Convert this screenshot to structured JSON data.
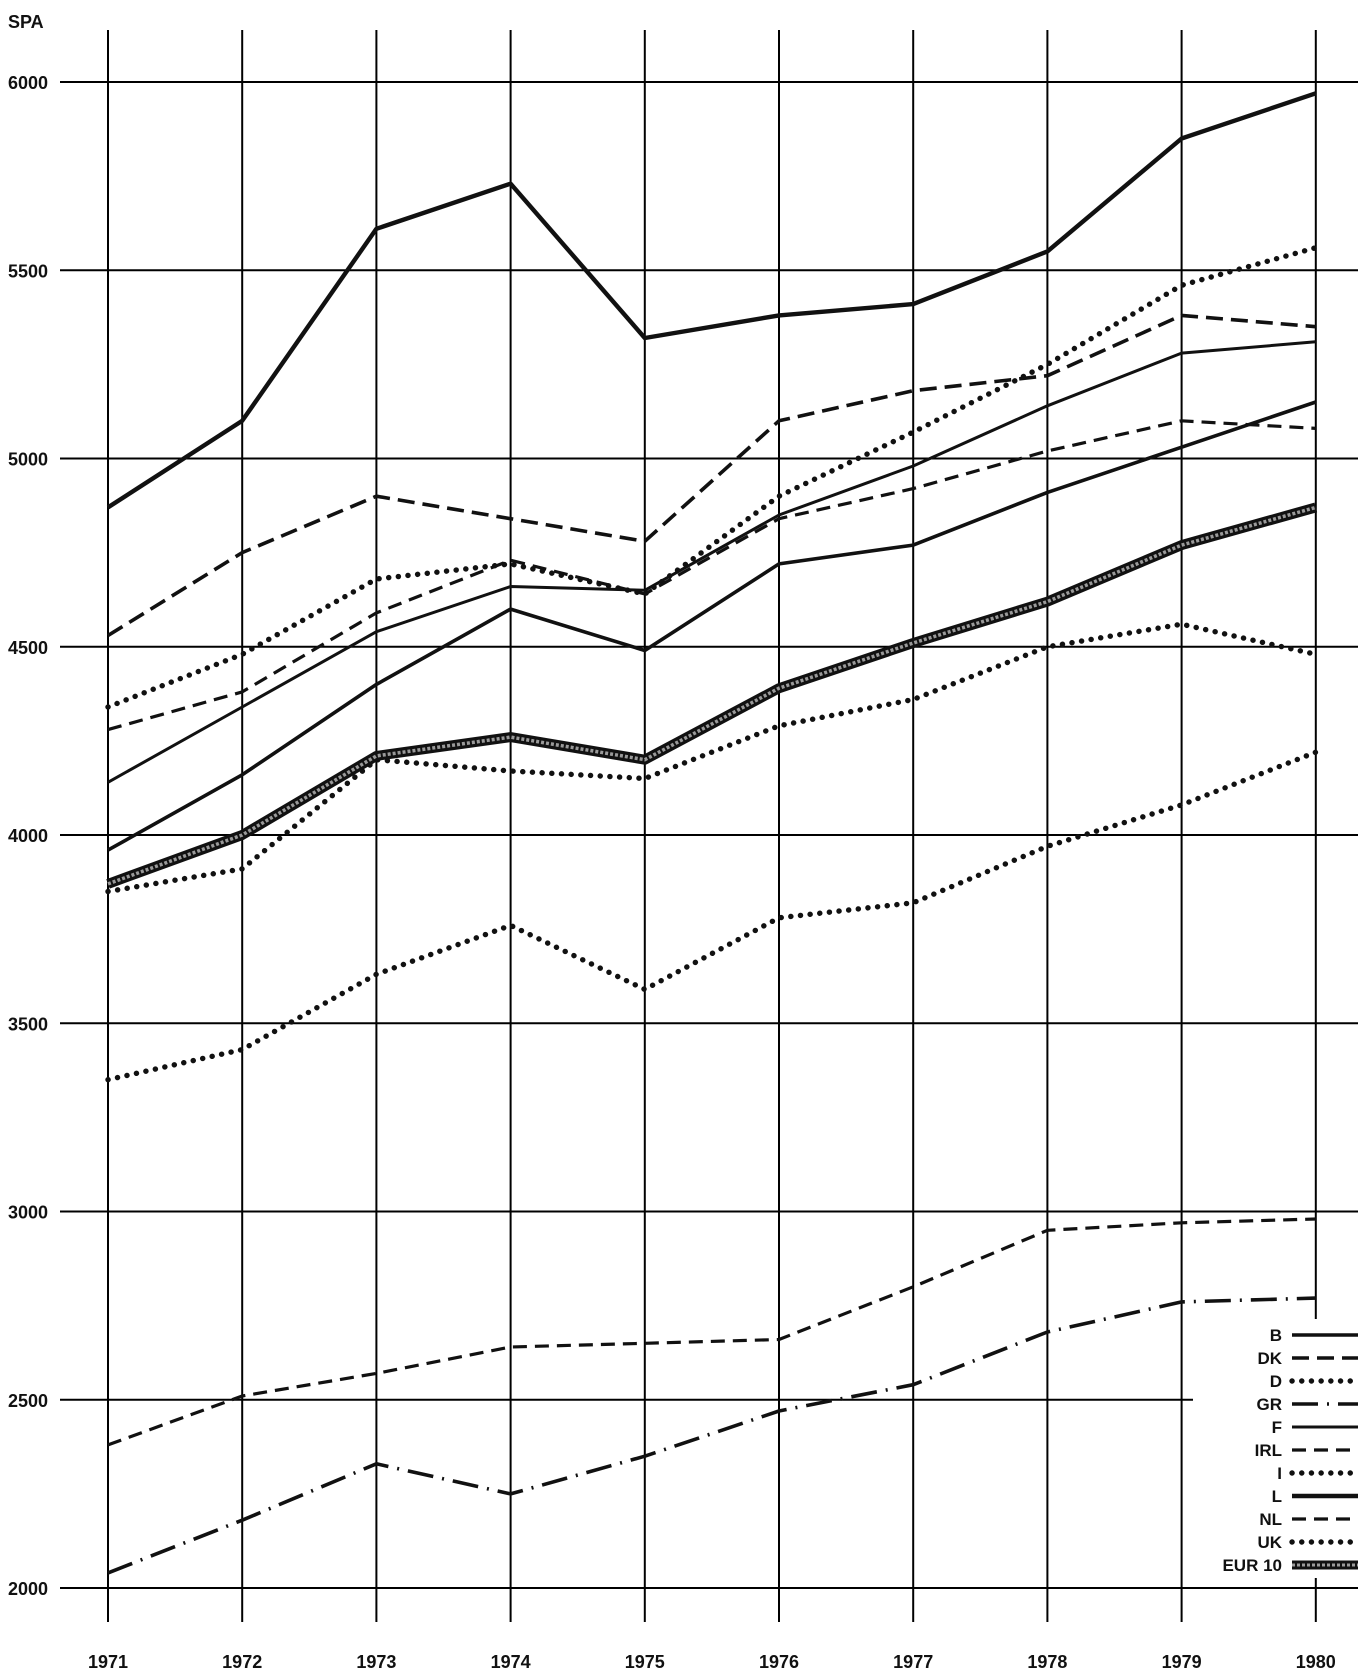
{
  "chart_data": {
    "type": "line",
    "title": "",
    "xlabel": "",
    "ylabel": "SPA",
    "x": [
      1971,
      1972,
      1973,
      1974,
      1975,
      1976,
      1977,
      1978,
      1979,
      1980
    ],
    "x_tick_labels": [
      "1971",
      "1972",
      "1973",
      "1974",
      "1975",
      "1976",
      "1977",
      "1978",
      "1979",
      "1980"
    ],
    "y_ticks": [
      2000,
      2500,
      3000,
      3500,
      4000,
      4500,
      5000,
      5500,
      6000
    ],
    "y_tick_labels": [
      "2000",
      "2500",
      "3000",
      "3500",
      "4000",
      "4500",
      "5000",
      "5500",
      "6000"
    ],
    "ylim": [
      2000,
      6000
    ],
    "grid": true,
    "legend_position": "bottom-right",
    "series": [
      {
        "name": "B",
        "style": "solid-thick",
        "values": [
          3960,
          4160,
          4400,
          4600,
          4490,
          4720,
          4770,
          4910,
          5030,
          5150
        ]
      },
      {
        "name": "DK",
        "style": "dash-thick",
        "values": [
          4530,
          4750,
          4900,
          4840,
          4780,
          5100,
          5180,
          5220,
          5380,
          5350
        ]
      },
      {
        "name": "D",
        "style": "dots",
        "values": [
          4340,
          4480,
          4680,
          4720,
          4640,
          4900,
          5070,
          5250,
          5460,
          5560
        ]
      },
      {
        "name": "GR",
        "style": "dash-dot",
        "values": [
          2040,
          2180,
          2330,
          2250,
          2350,
          2470,
          2540,
          2680,
          2760,
          2770
        ]
      },
      {
        "name": "F",
        "style": "solid-medium",
        "values": [
          4140,
          4340,
          4540,
          4660,
          4650,
          4850,
          4980,
          5140,
          5280,
          5310
        ]
      },
      {
        "name": "IRL",
        "style": "dash-medium",
        "values": [
          2380,
          2510,
          2570,
          2640,
          2650,
          2660,
          2800,
          2950,
          2970,
          2980
        ]
      },
      {
        "name": "I",
        "style": "dots",
        "values": [
          3350,
          3430,
          3630,
          3760,
          3590,
          3780,
          3820,
          3970,
          4080,
          4220
        ]
      },
      {
        "name": "L",
        "style": "solid-heavy",
        "values": [
          4870,
          5100,
          5610,
          5730,
          5320,
          5380,
          5410,
          5550,
          5850,
          5970
        ]
      },
      {
        "name": "NL",
        "style": "dash-medium",
        "values": [
          4280,
          4380,
          4590,
          4730,
          4640,
          4840,
          4920,
          5020,
          5100,
          5080
        ]
      },
      {
        "name": "UK",
        "style": "dots",
        "values": [
          3850,
          3910,
          4200,
          4170,
          4150,
          4290,
          4360,
          4500,
          4560,
          4480
        ]
      },
      {
        "name": "EUR 10",
        "style": "band",
        "values": [
          3870,
          4000,
          4210,
          4260,
          4200,
          4390,
          4510,
          4620,
          4770,
          4870
        ]
      }
    ]
  }
}
